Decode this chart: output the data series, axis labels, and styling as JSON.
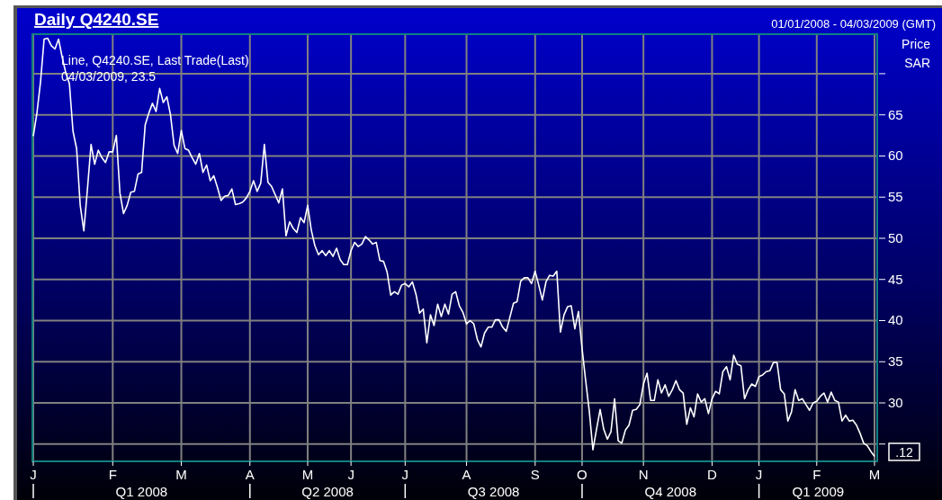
{
  "chart_data": {
    "type": "line",
    "title": "Daily Q4240.SE",
    "subtitle": "01/01/2008 - 04/03/2009 (GMT)",
    "ylabel": "Price SAR",
    "legend": "top left",
    "grid": true,
    "categories": [
      "J",
      null,
      null,
      null,
      null,
      null,
      null,
      null,
      null,
      null,
      null,
      null,
      null,
      null,
      null,
      null,
      null,
      null,
      null,
      null,
      null,
      null,
      "F",
      null,
      null,
      null,
      null,
      null,
      null,
      null,
      null,
      null,
      null,
      null,
      null,
      null,
      null,
      null,
      null,
      null,
      null,
      "M",
      null,
      null,
      null,
      null,
      null,
      null,
      null,
      null,
      null,
      null,
      null,
      null,
      null,
      null,
      null,
      null,
      null,
      null,
      "A",
      null,
      null,
      null,
      null,
      null,
      null,
      null,
      null,
      null,
      null,
      null,
      null,
      null,
      null,
      null,
      "M",
      null,
      null,
      null,
      null,
      null,
      null,
      null,
      null,
      null,
      null,
      null,
      "J",
      null,
      null,
      null,
      null,
      null,
      null,
      null,
      null,
      null,
      null,
      null,
      null,
      null,
      null,
      "J",
      null,
      null,
      null,
      null,
      null,
      null,
      null,
      null,
      null,
      null,
      null,
      null,
      null,
      null,
      null,
      null,
      "A",
      null,
      null,
      null,
      null,
      null,
      null,
      null,
      null,
      null,
      null,
      null,
      null,
      null,
      null,
      null,
      null,
      null,
      null,
      "S",
      null,
      null,
      null,
      null,
      null,
      null,
      null,
      null,
      null,
      null,
      null,
      null,
      "O",
      null,
      null,
      null,
      null,
      null,
      null,
      null,
      null,
      null,
      null,
      null,
      null,
      null,
      null,
      null,
      null,
      "N",
      null,
      null,
      null,
      null,
      null,
      null,
      null,
      null,
      null,
      null,
      null,
      null,
      null,
      null,
      null,
      null,
      null,
      null,
      "D",
      null,
      null,
      null,
      null,
      null,
      null,
      null,
      null,
      null,
      null,
      null,
      null,
      "J",
      null,
      null,
      null,
      null,
      null,
      null,
      null,
      null,
      null,
      null,
      null,
      null,
      null,
      null,
      null,
      "F",
      null,
      null,
      null,
      null,
      null,
      null,
      null,
      null,
      null,
      null,
      null,
      null,
      null,
      null,
      null,
      "M"
    ],
    "ylim": [
      22.9,
      74.8
    ],
    "yticks": [
      {
        "value": 25,
        "label": null
      },
      30,
      35,
      40,
      45,
      50,
      55,
      60,
      65,
      {
        "value": 70,
        "label": null
      }
    ],
    "annotations": [
      "04/03/2009, 23.5",
      ".12",
      "Q1 2008",
      "Q2 2008",
      "Q3 2008",
      "Q4 2008",
      "Q1 2009"
    ],
    "series": [
      {
        "name": "Line, Q4240.SE, Last Trade(Last)",
        "color": "#ffffff",
        "values": [
          62.4,
          65.2,
          69.0,
          74.2,
          74.3,
          73.4,
          73.0,
          74.2,
          72.0,
          70.1,
          68.8,
          63.0,
          60.9,
          54.0,
          50.9,
          56.0,
          61.4,
          59.0,
          60.7,
          59.8,
          59.2,
          60.5,
          60.5,
          62.5,
          55.5,
          53.0,
          54.0,
          55.6,
          55.7,
          57.8,
          58.0,
          63.8,
          65.2,
          66.4,
          65.4,
          68.2,
          66.5,
          67.2,
          65.0,
          61.3,
          60.3,
          63.1,
          60.9,
          60.7,
          59.8,
          59.0,
          60.3,
          58.0,
          58.9,
          57.0,
          57.6,
          56.2,
          54.6,
          55.1,
          55.2,
          56.0,
          54.1,
          54.2,
          54.4,
          54.9,
          55.7,
          57.0,
          55.7,
          56.7,
          61.4,
          56.8,
          56.3,
          55.3,
          54.3,
          56.0,
          50.3,
          52.0,
          51.2,
          50.7,
          52.5,
          51.9,
          54.0,
          51.0,
          49.1,
          48.0,
          48.5,
          47.9,
          48.5,
          47.8,
          48.8,
          47.4,
          46.8,
          46.8,
          48.5,
          49.5,
          49.0,
          49.3,
          50.2,
          49.8,
          49.3,
          49.5,
          47.3,
          47.2,
          45.9,
          43.1,
          43.5,
          43.2,
          44.3,
          44.5,
          44.1,
          44.7,
          43.2,
          40.9,
          41.4,
          37.3,
          40.7,
          39.4,
          42.0,
          40.5,
          42.0,
          40.8,
          43.2,
          43.5,
          41.8,
          41.0,
          39.6,
          40.0,
          39.6,
          37.7,
          36.8,
          38.5,
          39.2,
          39.2,
          40.1,
          40.1,
          39.2,
          38.7,
          40.4,
          42.1,
          42.3,
          44.8,
          45.2,
          45.2,
          44.5,
          46.0,
          44.3,
          42.5,
          44.7,
          45.5,
          45.4,
          46.0,
          38.6,
          40.7,
          41.7,
          41.8,
          39.0,
          41.1,
          36.6,
          32.7,
          29.0,
          24.3,
          26.8,
          29.2,
          26.8,
          25.6,
          26.5,
          30.5,
          25.4,
          25.1,
          26.7,
          27.3,
          29.1,
          29.2,
          29.8,
          32.3,
          33.6,
          30.3,
          30.3,
          32.8,
          31.2,
          32.2,
          30.8,
          31.6,
          32.7,
          31.6,
          31.2,
          27.4,
          29.4,
          28.3,
          31.1,
          30.1,
          30.5,
          28.7,
          30.5,
          31.4,
          31.1,
          33.8,
          34.4,
          32.8,
          35.8,
          34.7,
          34.5,
          30.5,
          31.6,
          32.3,
          32.0,
          33.2,
          33.4,
          33.8,
          33.9,
          34.9,
          34.9,
          31.6,
          31.1,
          27.8,
          28.9,
          31.6,
          30.3,
          30.5,
          29.8,
          29.1,
          30.0,
          30.2,
          30.8,
          31.2,
          30.1,
          31.3,
          30.3,
          30.1,
          27.8,
          28.5,
          27.8,
          27.9,
          27.3,
          26.3,
          25.1,
          24.8,
          24.1,
          23.5
        ]
      }
    ]
  }
}
